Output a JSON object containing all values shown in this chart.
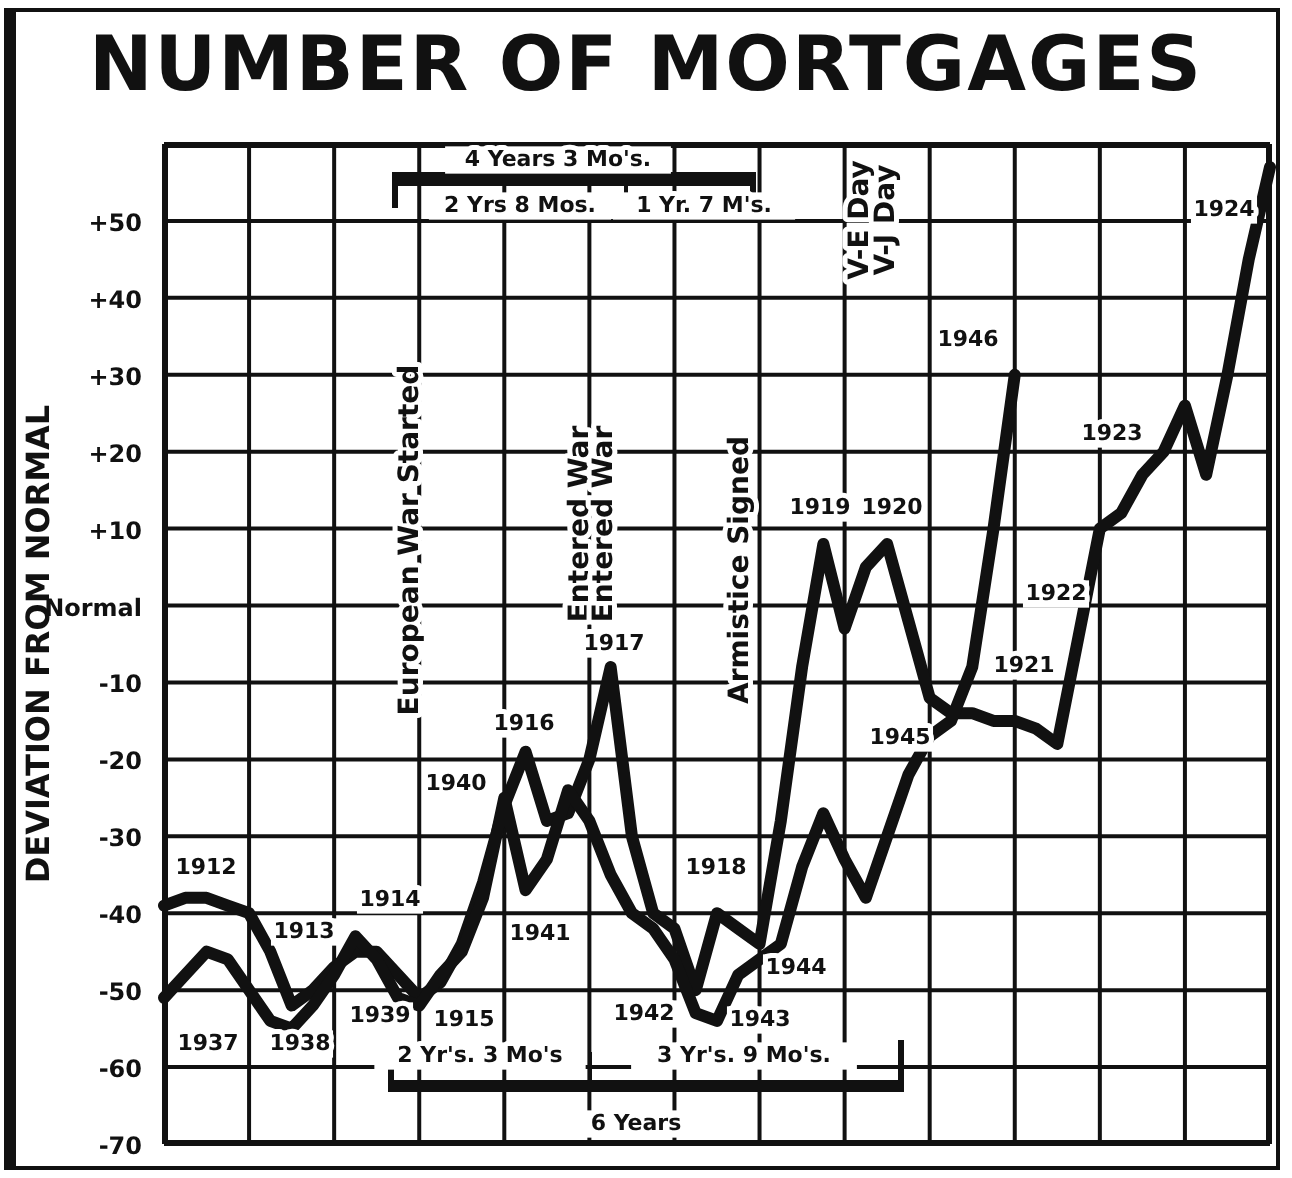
{
  "chart_data": {
    "type": "line",
    "title": "NUMBER OF MORTGAGES",
    "ylabel": "DEVIATION FROM NORMAL",
    "categories": [
      null,
      null,
      null,
      null,
      null,
      null,
      null,
      null,
      null,
      null,
      null,
      null,
      null,
      null,
      null,
      null,
      null,
      null,
      null,
      null,
      null,
      null,
      null,
      null,
      null,
      null,
      null,
      null,
      null,
      null,
      null,
      null,
      null,
      null,
      null,
      null,
      null,
      null,
      null,
      null,
      null,
      null,
      null,
      null,
      null,
      null,
      null,
      null,
      null,
      null,
      null,
      null,
      null
    ],
    "series": [
      {
        "color": "#111111",
        "values": [
          -39,
          -38,
          -38,
          -39,
          -40,
          -45,
          -52,
          -50,
          -47,
          -45,
          -45,
          -48,
          -51,
          -49,
          -44,
          -36,
          -26,
          -19,
          -28,
          -27,
          -20,
          -8,
          -30,
          -40,
          -42,
          -50,
          -40,
          -42,
          -44,
          -28,
          -8,
          8,
          -3,
          5,
          8,
          -2,
          -12,
          -14,
          -14,
          -15,
          -15,
          -16,
          -18,
          -4,
          10,
          12,
          17,
          20,
          26,
          17,
          30,
          45,
          57
        ]
      },
      {
        "color": "#111111",
        "values": [
          -51,
          -48,
          -45,
          -46,
          -50,
          -54,
          -55,
          -52,
          -48,
          -43,
          -46,
          -51,
          -52,
          -48,
          -45,
          -38,
          -25,
          -37,
          -33,
          -24,
          -28,
          -35,
          -40,
          -42,
          -46,
          -53,
          -54,
          -48,
          -46,
          -44,
          -34,
          -27,
          -33,
          -38,
          -30,
          -22,
          -17,
          -15,
          -8,
          10,
          30,
          null,
          null,
          null,
          null,
          null,
          null,
          null,
          null,
          null,
          null,
          null,
          null
        ]
      }
    ],
    "ylim": [
      -70,
      60
    ],
    "yticks": [
      -70,
      -60,
      -50,
      -40,
      -30,
      -20,
      -10,
      {
        "value": 0,
        "label": "Normal"
      },
      {
        "value": 10,
        "label": "+10"
      },
      {
        "value": 20,
        "label": "+20"
      },
      {
        "value": 30,
        "label": "+30"
      },
      {
        "value": 40,
        "label": "+40"
      },
      {
        "value": 50,
        "label": "+50"
      }
    ],
    "grid": true,
    "marker": "none",
    "line_style": "solid",
    "annotations": [
      "European War Started",
      "Entered War",
      "Entered War",
      "Armistice Signed",
      "V-E Day",
      "V-J Day",
      "4 Years 3 Mo's.",
      "2 Yrs 8 Mos.",
      "1 Yr. 7 M's.",
      "2 Yr's. 3 Mo's",
      "3 Yr's. 9 Mo's.",
      "6 Years",
      "1912",
      "1913",
      "1914",
      "1915",
      "1916",
      "1917",
      "1918",
      "1919",
      "1920",
      "1921",
      "1922",
      "1923",
      "1924",
      "1937",
      "1938",
      "1939",
      "1940",
      "1941",
      "1942",
      "1943",
      "1944",
      "1945",
      "1946"
    ]
  }
}
